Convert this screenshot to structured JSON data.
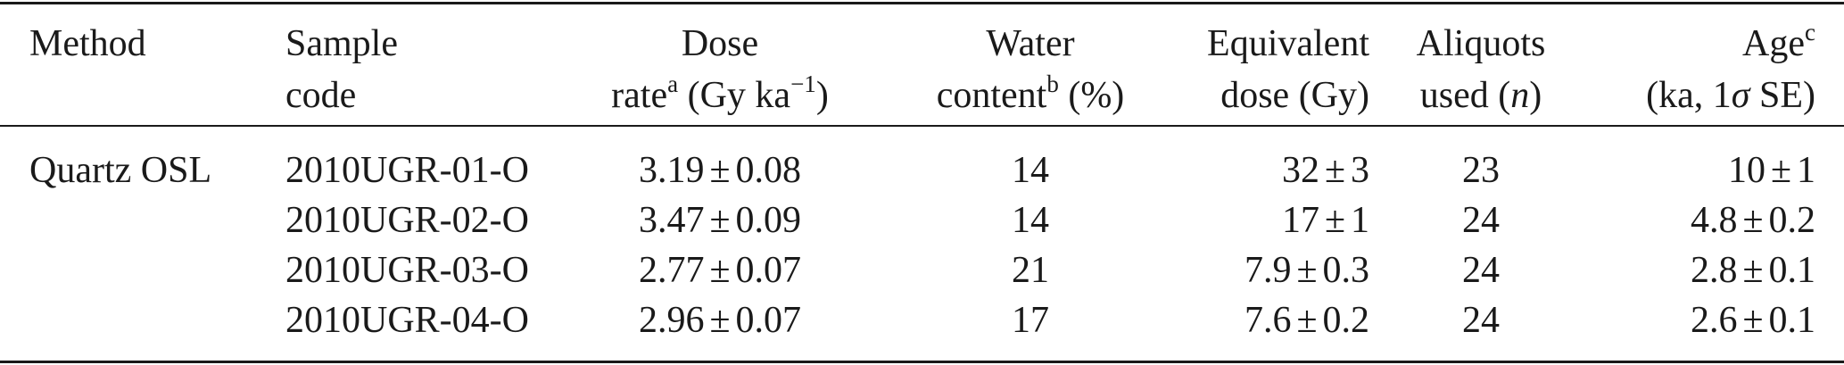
{
  "table": {
    "headers": {
      "method": "Method",
      "sample_l1": "Sample",
      "sample_l2": "code",
      "dose_l1": "Dose",
      "dose_l2_pre": "rate",
      "dose_l2_sup": "a",
      "dose_l2_post": " (Gy ka",
      "dose_l2_exp": "−1",
      "dose_l2_end": ")",
      "water_l1": "Water",
      "water_l2_pre": "content",
      "water_l2_sup": "b",
      "water_l2_post": " (%)",
      "equiv_l1": "Equivalent",
      "equiv_l2": "dose (Gy)",
      "aliq_l1": "Aliquots",
      "aliq_l2_pre": "used (",
      "aliq_l2_italic": "n",
      "aliq_l2_post": ")",
      "age_l1_pre": "Age",
      "age_l1_sup": "c",
      "age_l2_pre": "(ka, 1",
      "age_l2_sigma": "σ",
      "age_l2_post": " SE)"
    },
    "rows": [
      {
        "method": "Quartz OSL",
        "sample": "2010UGR-01-O",
        "dose_val": "3.19",
        "dose_err": "0.08",
        "water": "14",
        "equiv_val": "32",
        "equiv_err": "3",
        "aliquots": "23",
        "age_val": "10",
        "age_err": "1"
      },
      {
        "method": "",
        "sample": "2010UGR-02-O",
        "dose_val": "3.47",
        "dose_err": "0.09",
        "water": "14",
        "equiv_val": "17",
        "equiv_err": "1",
        "aliquots": "24",
        "age_val": "4.8",
        "age_err": "0.2"
      },
      {
        "method": "",
        "sample": "2010UGR-03-O",
        "dose_val": "2.77",
        "dose_err": "0.07",
        "water": "21",
        "equiv_val": "7.9",
        "equiv_err": "0.3",
        "aliquots": "24",
        "age_val": "2.8",
        "age_err": "0.1"
      },
      {
        "method": "",
        "sample": "2010UGR-04-O",
        "dose_val": "2.96",
        "dose_err": "0.07",
        "water": "17",
        "equiv_val": "7.6",
        "equiv_err": "0.2",
        "aliquots": "24",
        "age_val": "2.6",
        "age_err": "0.1"
      }
    ],
    "pm_symbol": "±"
  }
}
